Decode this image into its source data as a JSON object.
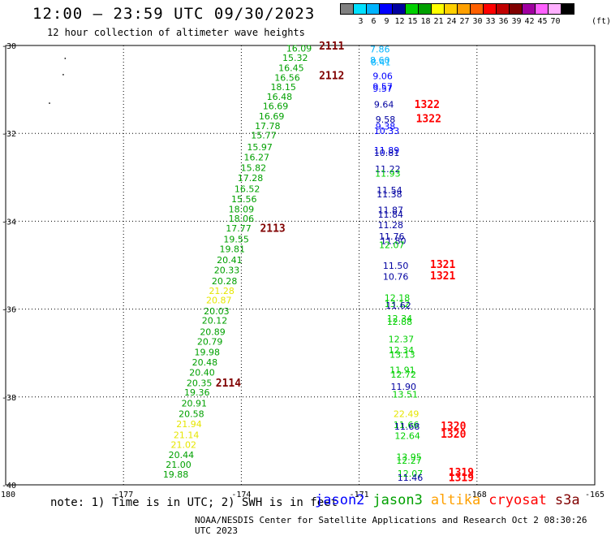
{
  "header": {
    "title": "12:00 – 23:59 UTC 09/30/2023",
    "subtitle": "12 hour collection of altimeter wave heights"
  },
  "legend": {
    "unit": "(ft)",
    "entries": [
      {
        "label": "",
        "color": "#808080"
      },
      {
        "label": "3",
        "color": "#00e0ff"
      },
      {
        "label": "6",
        "color": "#00b4ff"
      },
      {
        "label": "9",
        "color": "#0000ff"
      },
      {
        "label": "12",
        "color": "#0000a0"
      },
      {
        "label": "15",
        "color": "#00d000"
      },
      {
        "label": "18",
        "color": "#00a000"
      },
      {
        "label": "21",
        "color": "#ffff00"
      },
      {
        "label": "24",
        "color": "#ffd000"
      },
      {
        "label": "27",
        "color": "#ffa000"
      },
      {
        "label": "30",
        "color": "#ff6000"
      },
      {
        "label": "33",
        "color": "#ff0000"
      },
      {
        "label": "36",
        "color": "#c00000"
      },
      {
        "label": "39",
        "color": "#800000"
      },
      {
        "label": "42",
        "color": "#a000a0"
      },
      {
        "label": "45",
        "color": "#ff60ff"
      },
      {
        "label": "70",
        "color": "#ffb0ff"
      },
      {
        "label": "",
        "color": "#000000"
      }
    ]
  },
  "footer": {
    "note": "note: 1) Time is in UTC; 2) SWH is in feet",
    "credit": "NOAA/NESDIS Center for Satellite Applications and Research   Oct  2 08:30:26 UTC 2023"
  },
  "satellites": [
    {
      "name": "jason2",
      "color": "#0000ff"
    },
    {
      "name": "jason3",
      "color": "#00a000"
    },
    {
      "name": "altika",
      "color": "#ffa000"
    },
    {
      "name": "cryosat",
      "color": "#ff0000"
    },
    {
      "name": "s3a",
      "color": "#800000"
    }
  ],
  "chart_data": {
    "type": "scatter",
    "xlim": [
      -180,
      -165
    ],
    "ylim": [
      -40,
      -30
    ],
    "xticks": [
      -180,
      -177,
      -174,
      -171,
      -168,
      -165
    ],
    "yticks": [
      -30,
      -32,
      -34,
      -36,
      -38,
      -40
    ],
    "grid": true,
    "series": [
      {
        "name": "track_west",
        "points": [
          {
            "lon": -172.53,
            "lat": -30.08,
            "v": "16.09",
            "c": "#00a000"
          },
          {
            "lon": -172.63,
            "lat": -30.3,
            "v": "15.32",
            "c": "#00a000"
          },
          {
            "lon": -172.73,
            "lat": -30.53,
            "v": "16.45",
            "c": "#00a000"
          },
          {
            "lon": -172.83,
            "lat": -30.75,
            "v": "16.56",
            "c": "#00a000"
          },
          {
            "lon": -172.93,
            "lat": -30.96,
            "v": "18.15",
            "c": "#00a000"
          },
          {
            "lon": -173.03,
            "lat": -31.18,
            "v": "16.48",
            "c": "#00a000"
          },
          {
            "lon": -173.13,
            "lat": -31.4,
            "v": "16.69",
            "c": "#00a000"
          },
          {
            "lon": -173.23,
            "lat": -31.63,
            "v": "16.69",
            "c": "#00a000"
          },
          {
            "lon": -173.33,
            "lat": -31.85,
            "v": "17.78",
            "c": "#00a000"
          },
          {
            "lon": -173.43,
            "lat": -32.06,
            "v": "15.77",
            "c": "#00a000"
          },
          {
            "lon": -173.53,
            "lat": -32.33,
            "v": "15.97",
            "c": "#00a000"
          },
          {
            "lon": -173.61,
            "lat": -32.56,
            "v": "16.27",
            "c": "#00a000"
          },
          {
            "lon": -173.69,
            "lat": -32.8,
            "v": "15.82",
            "c": "#00a000"
          },
          {
            "lon": -173.77,
            "lat": -33.03,
            "v": "17.28",
            "c": "#00a000"
          },
          {
            "lon": -173.85,
            "lat": -33.28,
            "v": "16.52",
            "c": "#00a000"
          },
          {
            "lon": -173.93,
            "lat": -33.51,
            "v": "15.56",
            "c": "#00a000"
          },
          {
            "lon": -174.0,
            "lat": -33.74,
            "v": "18.09",
            "c": "#00a000"
          },
          {
            "lon": -174.0,
            "lat": -33.96,
            "v": "18.06",
            "c": "#00a000"
          },
          {
            "lon": -174.07,
            "lat": -34.18,
            "v": "17.77",
            "c": "#00a000"
          },
          {
            "lon": -174.13,
            "lat": -34.43,
            "v": "19.55",
            "c": "#00a000"
          },
          {
            "lon": -174.23,
            "lat": -34.65,
            "v": "19.81",
            "c": "#00a000"
          },
          {
            "lon": -174.3,
            "lat": -34.9,
            "v": "20.41",
            "c": "#00a000"
          },
          {
            "lon": -174.37,
            "lat": -35.13,
            "v": "20.33",
            "c": "#00a000"
          },
          {
            "lon": -174.43,
            "lat": -35.38,
            "v": "20.28",
            "c": "#00a000"
          },
          {
            "lon": -174.5,
            "lat": -35.6,
            "v": "21.28",
            "c": "#e6e600"
          },
          {
            "lon": -174.57,
            "lat": -35.81,
            "v": "20.87",
            "c": "#e6e600"
          },
          {
            "lon": -174.63,
            "lat": -36.06,
            "v": "20.03",
            "c": "#00a000"
          },
          {
            "lon": -174.68,
            "lat": -36.28,
            "v": "20.12",
            "c": "#00a000"
          },
          {
            "lon": -174.73,
            "lat": -36.53,
            "v": "20.89",
            "c": "#00a000"
          },
          {
            "lon": -174.8,
            "lat": -36.76,
            "v": "20.79",
            "c": "#00a000"
          },
          {
            "lon": -174.87,
            "lat": -37.0,
            "v": "19.98",
            "c": "#00a000"
          },
          {
            "lon": -174.93,
            "lat": -37.23,
            "v": "20.48",
            "c": "#00a000"
          },
          {
            "lon": -175.0,
            "lat": -37.46,
            "v": "20.40",
            "c": "#00a000"
          },
          {
            "lon": -175.07,
            "lat": -37.7,
            "v": "20.35",
            "c": "#00a000"
          },
          {
            "lon": -175.13,
            "lat": -37.91,
            "v": "19.36",
            "c": "#00a000"
          },
          {
            "lon": -175.2,
            "lat": -38.16,
            "v": "20.91",
            "c": "#00a000"
          },
          {
            "lon": -175.27,
            "lat": -38.4,
            "v": "20.58",
            "c": "#00a000"
          },
          {
            "lon": -175.33,
            "lat": -38.63,
            "v": "21.94",
            "c": "#e6e600"
          },
          {
            "lon": -175.4,
            "lat": -38.88,
            "v": "21.14",
            "c": "#e6e600"
          },
          {
            "lon": -175.47,
            "lat": -39.1,
            "v": "21.02",
            "c": "#e6e600"
          },
          {
            "lon": -175.53,
            "lat": -39.33,
            "v": "20.44",
            "c": "#00a000"
          },
          {
            "lon": -175.6,
            "lat": -39.56,
            "v": "21.00",
            "c": "#00a000"
          },
          {
            "lon": -175.67,
            "lat": -39.78,
            "v": "19.88",
            "c": "#00a000"
          }
        ]
      },
      {
        "name": "track_east",
        "points": [
          {
            "lon": -170.47,
            "lat": -30.1,
            "v": "7.86",
            "c": "#00b4ff"
          },
          {
            "lon": -170.47,
            "lat": -30.35,
            "v": "8.60",
            "c": "#00b4ff"
          },
          {
            "lon": -170.45,
            "lat": -30.4,
            "v": "8.41",
            "c": "#00b4ff"
          },
          {
            "lon": -170.4,
            "lat": -30.71,
            "v": "9.06",
            "c": "#0000ff"
          },
          {
            "lon": -170.4,
            "lat": -30.95,
            "v": "9.57",
            "c": "#0000ff"
          },
          {
            "lon": -170.4,
            "lat": -31.0,
            "v": "9.57",
            "c": "#0000ff"
          },
          {
            "lon": -170.37,
            "lat": -31.36,
            "v": "9.64",
            "c": "#0000a0"
          },
          {
            "lon": -170.33,
            "lat": -31.7,
            "v": "9.58",
            "c": "#0000a0"
          },
          {
            "lon": -170.33,
            "lat": -31.86,
            "v": "9.38",
            "c": "#0000ff"
          },
          {
            "lon": -170.3,
            "lat": -31.96,
            "v": "10.33",
            "c": "#0000ff"
          },
          {
            "lon": -170.3,
            "lat": -32.4,
            "v": "11.89",
            "c": "#0000ff"
          },
          {
            "lon": -170.3,
            "lat": -32.46,
            "v": "10.81",
            "c": "#0000a0"
          },
          {
            "lon": -170.27,
            "lat": -32.83,
            "v": "11.22",
            "c": "#0000a0"
          },
          {
            "lon": -170.27,
            "lat": -32.93,
            "v": "11.93",
            "c": "#00d000"
          },
          {
            "lon": -170.23,
            "lat": -33.31,
            "v": "11.54",
            "c": "#0000a0"
          },
          {
            "lon": -170.23,
            "lat": -33.4,
            "v": "11.38",
            "c": "#0000a0"
          },
          {
            "lon": -170.2,
            "lat": -33.76,
            "v": "11.87",
            "c": "#0000a0"
          },
          {
            "lon": -170.2,
            "lat": -33.86,
            "v": "11.84",
            "c": "#0000a0"
          },
          {
            "lon": -170.2,
            "lat": -34.1,
            "v": "11.28",
            "c": "#0000a0"
          },
          {
            "lon": -170.17,
            "lat": -34.36,
            "v": "11.76",
            "c": "#0000a0"
          },
          {
            "lon": -170.13,
            "lat": -34.46,
            "v": "11.80",
            "c": "#0000a0"
          },
          {
            "lon": -170.17,
            "lat": -34.56,
            "v": "12.07",
            "c": "#00d000"
          },
          {
            "lon": -170.07,
            "lat": -35.03,
            "v": "11.50",
            "c": "#0000a0"
          },
          {
            "lon": -170.07,
            "lat": -35.28,
            "v": "10.76",
            "c": "#0000a0"
          },
          {
            "lon": -170.03,
            "lat": -35.76,
            "v": "12.18",
            "c": "#00d000"
          },
          {
            "lon": -170.03,
            "lat": -35.9,
            "v": "13.12",
            "c": "#00d000"
          },
          {
            "lon": -170.0,
            "lat": -35.93,
            "v": "11.62",
            "c": "#0000a0"
          },
          {
            "lon": -169.97,
            "lat": -36.23,
            "v": "12.34",
            "c": "#00d000"
          },
          {
            "lon": -169.97,
            "lat": -36.3,
            "v": "12.88",
            "c": "#00d000"
          },
          {
            "lon": -169.93,
            "lat": -36.7,
            "v": "12.37",
            "c": "#00d000"
          },
          {
            "lon": -169.93,
            "lat": -36.95,
            "v": "12.34",
            "c": "#00d000"
          },
          {
            "lon": -169.9,
            "lat": -37.05,
            "v": "13.13",
            "c": "#00d000"
          },
          {
            "lon": -169.9,
            "lat": -37.4,
            "v": "11.91",
            "c": "#00d000"
          },
          {
            "lon": -169.87,
            "lat": -37.5,
            "v": "12.72",
            "c": "#00d000"
          },
          {
            "lon": -169.87,
            "lat": -37.78,
            "v": "11.90",
            "c": "#0000a0"
          },
          {
            "lon": -169.83,
            "lat": -37.96,
            "v": "13.51",
            "c": "#00d000"
          },
          {
            "lon": -169.8,
            "lat": -38.4,
            "v": "22.49",
            "c": "#e6e600"
          },
          {
            "lon": -169.8,
            "lat": -38.65,
            "v": "11.66",
            "c": "#00d000"
          },
          {
            "lon": -169.78,
            "lat": -38.69,
            "v": "11.68",
            "c": "#0000a0"
          },
          {
            "lon": -169.77,
            "lat": -38.9,
            "v": "12.64",
            "c": "#00d000"
          },
          {
            "lon": -169.73,
            "lat": -39.38,
            "v": "13.95",
            "c": "#00d000"
          },
          {
            "lon": -169.73,
            "lat": -39.46,
            "v": "12.27",
            "c": "#00d000"
          },
          {
            "lon": -169.7,
            "lat": -39.76,
            "v": "12.07",
            "c": "#00d000"
          },
          {
            "lon": -169.7,
            "lat": -39.85,
            "v": "11.46",
            "c": "#0000a0"
          }
        ]
      }
    ],
    "time_labels": [
      {
        "lon": -171.7,
        "lat": -30.03,
        "text": "2111",
        "c": "#800000"
      },
      {
        "lon": -171.7,
        "lat": -30.7,
        "text": "2112",
        "c": "#800000"
      },
      {
        "lon": -173.2,
        "lat": -34.18,
        "text": "2113",
        "c": "#800000"
      },
      {
        "lon": -174.33,
        "lat": -37.7,
        "text": "2114",
        "c": "#800000"
      },
      {
        "lon": -169.27,
        "lat": -31.36,
        "text": "1322",
        "c": "#ff0000"
      },
      {
        "lon": -169.23,
        "lat": -31.68,
        "text": "1322",
        "c": "#ff0000"
      },
      {
        "lon": -168.87,
        "lat": -35.0,
        "text": "1321",
        "c": "#ff0000"
      },
      {
        "lon": -168.87,
        "lat": -35.26,
        "text": "1321",
        "c": "#ff0000"
      },
      {
        "lon": -168.6,
        "lat": -38.68,
        "text": "1320",
        "c": "#ff0000"
      },
      {
        "lon": -168.6,
        "lat": -38.86,
        "text": "1320",
        "c": "#ff0000"
      },
      {
        "lon": -168.4,
        "lat": -39.73,
        "text": "1319",
        "c": "#ff0000"
      },
      {
        "lon": -168.4,
        "lat": -39.85,
        "text": "1319",
        "c": "#ff0000"
      }
    ],
    "land_dots": [
      {
        "lon": -178.5,
        "lat": -30.28
      },
      {
        "lon": -178.55,
        "lat": -30.65
      },
      {
        "lon": -178.9,
        "lat": -31.3
      }
    ]
  }
}
